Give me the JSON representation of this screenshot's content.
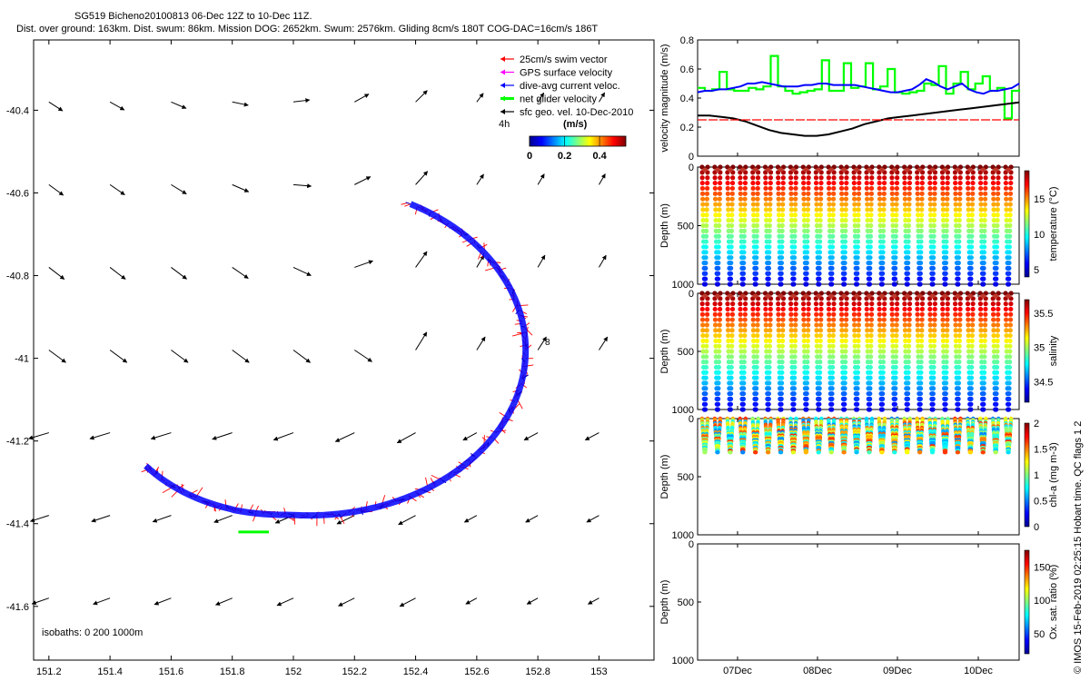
{
  "header": {
    "line1": "SG519 Bicheno20100813 06-Dec 12Z to 10-Dec 11Z.",
    "line2": "Dist. over ground: 163km. Dist. swum: 86km. Mission DOG: 2652km. Swum: 2576km. Gliding 8cm/s 180T COG-DAC=16cm/s 186T"
  },
  "copyright": "© IMOS 15-Feb-2019 02:25:15 Hobart time. QC flags 1  2",
  "chart_data": [
    {
      "type": "map",
      "x_ticks": [
        "151.2",
        "151.4",
        "151.6",
        "151.8",
        "152",
        "152.2",
        "152.4",
        "152.6",
        "152.8",
        "153"
      ],
      "y_ticks": [
        "-40.4",
        "-40.6",
        "-40.8",
        "-41",
        "-41.2",
        "-41.4",
        "-41.6"
      ],
      "xlim": [
        151.15,
        153.18
      ],
      "ylim": [
        -41.73,
        -40.23
      ],
      "legend": [
        {
          "label": "25cm/s swim vector",
          "color": "#ff0000"
        },
        {
          "label": "GPS surface velocity",
          "color": "#ff00ff"
        },
        {
          "label": "dive-avg current veloc.",
          "color": "#0000ff"
        },
        {
          "label": "net glider velocity",
          "color": "#00ff00"
        },
        {
          "label": "sfc geo. vel. 10-Dec-2010",
          "color": "#000000"
        }
      ],
      "legend_extra": "4h",
      "colorbar": {
        "label": "(m/s)",
        "ticks": [
          "0",
          "0.2",
          "0.4"
        ],
        "range": [
          0,
          0.55
        ]
      },
      "isobaths_label": "isobaths: 0   200   1000m",
      "annotation": "8"
    },
    {
      "type": "line",
      "ylabel": "velocity magnitude (m/s)",
      "ylim": [
        0,
        0.8
      ],
      "y_ticks": [
        "0",
        "0.2",
        "0.4",
        "0.6",
        "0.8"
      ],
      "series": [
        {
          "color": "#00ff00",
          "values": [
            0.47,
            0.45,
            0.46,
            0.58,
            0.46,
            0.45,
            0.45,
            0.47,
            0.46,
            0.48,
            0.69,
            0.48,
            0.45,
            0.43,
            0.44,
            0.45,
            0.46,
            0.66,
            0.45,
            0.45,
            0.64,
            0.47,
            0.48,
            0.64,
            0.46,
            0.48,
            0.6,
            0.44,
            0.43,
            0.44,
            0.45,
            0.5,
            0.49,
            0.62,
            0.43,
            0.5,
            0.58,
            0.46,
            0.5,
            0.55,
            0.45,
            0.47,
            0.26,
            0.45,
            0.46
          ]
        },
        {
          "color": "#0000ff",
          "values": [
            0.44,
            0.45,
            0.45,
            0.46,
            0.46,
            0.47,
            0.48,
            0.5,
            0.5,
            0.51,
            0.5,
            0.49,
            0.48,
            0.48,
            0.48,
            0.49,
            0.49,
            0.5,
            0.5,
            0.49,
            0.49,
            0.49,
            0.49,
            0.48,
            0.47,
            0.46,
            0.45,
            0.44,
            0.44,
            0.45,
            0.46,
            0.49,
            0.53,
            0.51,
            0.48,
            0.46,
            0.48,
            0.5,
            0.46,
            0.44,
            0.43,
            0.45,
            0.45,
            0.46,
            0.47,
            0.5
          ]
        },
        {
          "color": "#000000",
          "values": [
            0.28,
            0.28,
            0.27,
            0.26,
            0.24,
            0.21,
            0.18,
            0.16,
            0.15,
            0.14,
            0.14,
            0.15,
            0.17,
            0.19,
            0.22,
            0.24,
            0.26,
            0.27,
            0.28,
            0.29,
            0.3,
            0.31,
            0.32,
            0.33,
            0.34,
            0.35,
            0.36,
            0.37
          ]
        },
        {
          "color": "#ff0000",
          "values": [
            0.25,
            0.25
          ]
        }
      ]
    },
    {
      "type": "scatter",
      "ylabel": "Depth (m)",
      "colorbar_label": "temperature (°C)",
      "colorbar_ticks": [
        "5",
        "10",
        "15"
      ],
      "y_ticks": [
        "0",
        "500",
        "1000"
      ],
      "ylim": [
        0,
        1000
      ],
      "profile_count": 25
    },
    {
      "type": "scatter",
      "ylabel": "Depth (m)",
      "colorbar_label": "salinity",
      "colorbar_ticks": [
        "34.5",
        "35",
        "35.5"
      ],
      "y_ticks": [
        "0",
        "500",
        "1000"
      ],
      "ylim": [
        0,
        1000
      ],
      "profile_count": 25
    },
    {
      "type": "scatter",
      "ylabel": "Depth (m)",
      "colorbar_label": "chl-a (mg m-3)",
      "colorbar_ticks": [
        "0",
        "0.5",
        "1",
        "1.5",
        "2"
      ],
      "y_ticks": [
        "0",
        "500",
        "1000"
      ],
      "ylim": [
        0,
        1000
      ],
      "profile_count": 25
    },
    {
      "type": "scatter",
      "ylabel": "Depth (m)",
      "colorbar_label": "Ox. sat. ratio (%)",
      "colorbar_ticks": [
        "50",
        "100",
        "150"
      ],
      "y_ticks": [
        "0",
        "500",
        "1000"
      ],
      "ylim": [
        0,
        1000
      ],
      "x_ticks": [
        "07Dec",
        "08Dec",
        "09Dec",
        "10Dec"
      ]
    }
  ]
}
